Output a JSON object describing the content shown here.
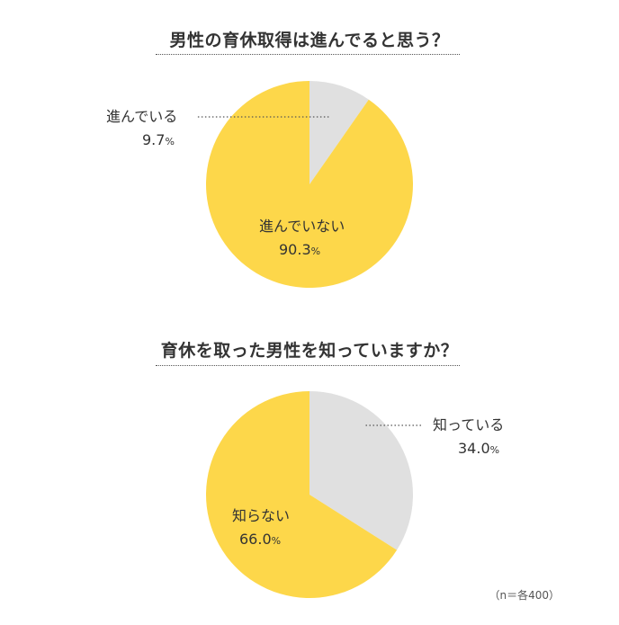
{
  "chart_data": [
    {
      "type": "pie",
      "title": "男性の育休取得は進んでると思う？",
      "slices": [
        {
          "label": "進んでいる",
          "value": 9.7,
          "display": "9.7",
          "unit": "%",
          "color": "#e0e0e0"
        },
        {
          "label": "進んでいない",
          "value": 90.3,
          "display": "90.3",
          "unit": "%",
          "color": "#fdd74a"
        }
      ]
    },
    {
      "type": "pie",
      "title": "育休を取った男性を知っていますか？",
      "slices": [
        {
          "label": "知っている",
          "value": 34.0,
          "display": "34.0",
          "unit": "%",
          "color": "#e0e0e0"
        },
        {
          "label": "知らない",
          "value": 66.0,
          "display": "66.0",
          "unit": "%",
          "color": "#fdd74a"
        }
      ]
    }
  ],
  "note": "（n＝各400）"
}
